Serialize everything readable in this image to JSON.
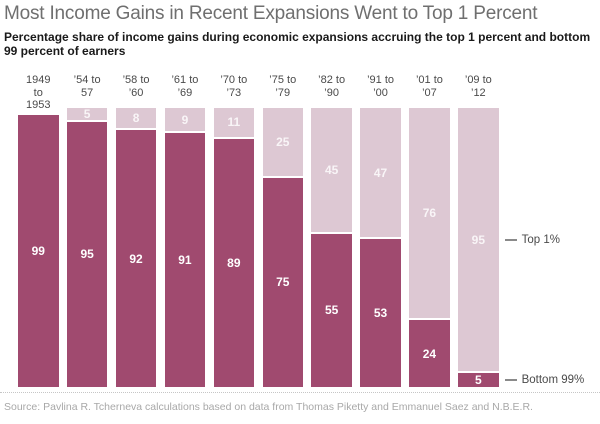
{
  "header": {
    "title": "Most Income Gains in Recent Expansions Went to Top 1 Percent",
    "subtitle": "Percentage share of income gains during economic expansions accruing the top 1 percent and bottom 99 percent of earners"
  },
  "chart_data": {
    "type": "bar",
    "stacked": true,
    "title": "Most Income Gains in Recent Expansions Went to Top 1 Percent",
    "subtitle": "Percentage share of income gains during economic expansions accruing the top 1 percent and bottom 99 percent of earners",
    "categories": [
      "1949 to 1953",
      "’54 to 57",
      "’58 to ’60",
      "’61 to ’69",
      "’70 to ’73",
      "’75 to ’79",
      "’82 to ’90",
      "’91 to ’00",
      "’01 to ’07",
      "’09 to ’12"
    ],
    "category_lines": [
      [
        "1949",
        "to",
        "1953"
      ],
      [
        "’54 to",
        "57"
      ],
      [
        "’58 to",
        "’60"
      ],
      [
        "’61 to",
        "’69"
      ],
      [
        "’70 to",
        "’73"
      ],
      [
        "’75 to",
        "’79"
      ],
      [
        "’82 to",
        "’90"
      ],
      [
        "’91 to",
        "’00"
      ],
      [
        "’01 to",
        "’07"
      ],
      [
        "’09 to",
        "’12"
      ]
    ],
    "series": [
      {
        "name": "Bottom 99%",
        "values": [
          99,
          95,
          92,
          91,
          89,
          75,
          55,
          53,
          24,
          5
        ],
        "color": "#a04a6f"
      },
      {
        "name": "Top 1%",
        "values": [
          null,
          5,
          8,
          9,
          11,
          25,
          45,
          47,
          76,
          95
        ],
        "color": "#ddc8d3"
      }
    ],
    "ylim": [
      0,
      100
    ],
    "value_labels": true,
    "grid": false,
    "legend_position": "right-of-last-bar",
    "annotations": [
      {
        "text": "Top 1%",
        "attached_to": "top1-segment-of-last-bar"
      },
      {
        "text": "Bottom 99%",
        "attached_to": "bottom99-segment-of-last-bar"
      }
    ]
  },
  "source": "Source: Pavlina R. Tcherneva calculations based on data from Thomas Piketty and Emmanuel Saez and N.B.E.R.",
  "colors": {
    "bottom99_bar": "#a04a6f",
    "top1_bar": "#ddc8d3",
    "title_text": "#6f6f6f",
    "subtitle_text": "#1a1a1a",
    "source_text": "#a8a8a8"
  }
}
